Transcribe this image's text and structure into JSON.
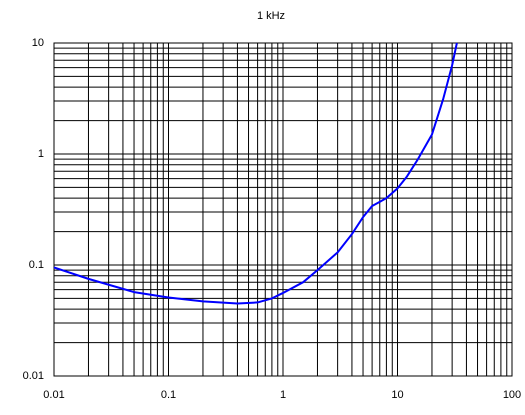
{
  "chart_data": {
    "type": "line",
    "title": "1 kHz",
    "x": [
      0.01,
      0.02,
      0.05,
      0.1,
      0.2,
      0.4,
      0.6,
      0.8,
      1,
      1.5,
      2,
      3,
      4,
      5,
      6,
      8,
      10,
      12,
      15,
      20,
      25,
      30,
      33
    ],
    "series": [
      {
        "name": "1 kHz",
        "color": "#0000ff",
        "values": [
          0.095,
          0.075,
          0.057,
          0.051,
          0.047,
          0.045,
          0.046,
          0.05,
          0.056,
          0.07,
          0.09,
          0.13,
          0.19,
          0.27,
          0.34,
          0.4,
          0.49,
          0.62,
          0.89,
          1.5,
          3.1,
          6.3,
          10
        ]
      }
    ],
    "xlim": [
      0.01,
      100
    ],
    "ylim": [
      0.01,
      10
    ],
    "xticks": [
      0.01,
      0.1,
      1,
      10,
      100
    ],
    "yticks": [
      0.01,
      0.1,
      1,
      10
    ],
    "xlog": true,
    "ylog": true,
    "grid": true,
    "minor_grid": true
  }
}
